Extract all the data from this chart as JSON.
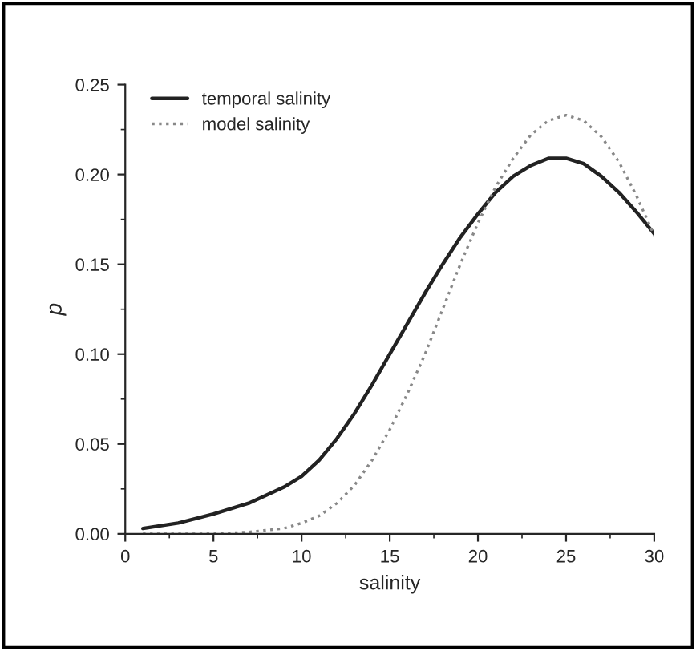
{
  "chart_data": {
    "type": "line",
    "xlabel": "salinity",
    "ylabel": "p",
    "xlim": [
      0,
      30
    ],
    "ylim": [
      0,
      0.25
    ],
    "xticks": [
      0,
      5,
      10,
      15,
      20,
      25,
      30
    ],
    "yticks": [
      {
        "value": 0,
        "label": "0.00"
      },
      {
        "value": 0.05,
        "label": "0.05"
      },
      {
        "value": 0.1,
        "label": "0.10"
      },
      {
        "value": 0.15,
        "label": "0.15"
      },
      {
        "value": 0.2,
        "label": "0.20"
      },
      {
        "value": 0.25,
        "label": "0.25"
      }
    ],
    "legend": "top left",
    "grid": false,
    "series": [
      {
        "name": "temporal salinity",
        "color": "#222222",
        "line_style": "solid",
        "x": [
          1,
          3,
          5,
          7,
          9,
          10,
          11,
          12,
          13,
          14,
          15,
          16,
          17,
          18,
          19,
          20,
          21,
          22,
          23,
          24,
          25,
          26,
          27,
          28,
          29,
          30
        ],
        "values": [
          0.003,
          0.006,
          0.011,
          0.017,
          0.026,
          0.032,
          0.041,
          0.053,
          0.067,
          0.083,
          0.1,
          0.117,
          0.134,
          0.15,
          0.165,
          0.178,
          0.19,
          0.199,
          0.205,
          0.209,
          0.209,
          0.206,
          0.199,
          0.19,
          0.179,
          0.167
        ]
      },
      {
        "name": "model salinity",
        "color": "#888888",
        "line_style": "dotted",
        "x": [
          1,
          5,
          7,
          8,
          9,
          10,
          11,
          12,
          13,
          14,
          15,
          16,
          17,
          18,
          19,
          20,
          21,
          22,
          23,
          24,
          25,
          26,
          27,
          28,
          29,
          30
        ],
        "values": [
          0.0,
          0.0,
          0.001,
          0.002,
          0.003,
          0.006,
          0.01,
          0.017,
          0.027,
          0.041,
          0.058,
          0.078,
          0.1,
          0.125,
          0.15,
          0.173,
          0.193,
          0.209,
          0.222,
          0.23,
          0.233,
          0.23,
          0.221,
          0.207,
          0.188,
          0.166
        ]
      }
    ]
  }
}
